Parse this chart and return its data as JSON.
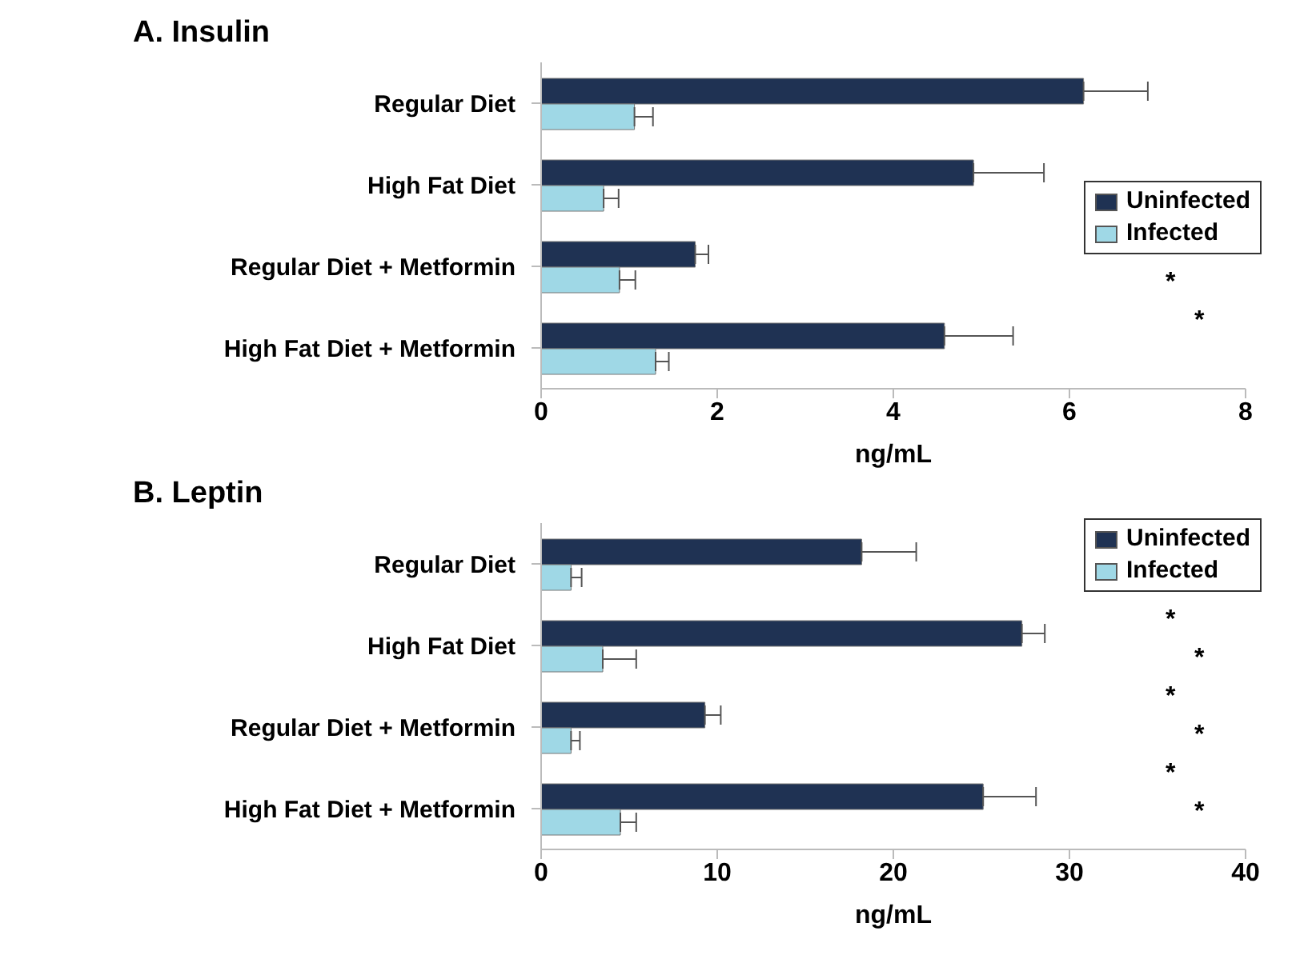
{
  "chart_data": [
    {
      "type": "bar",
      "orientation": "horizontal",
      "title": "A. Insulin",
      "xlabel": "ng/mL",
      "categories": [
        "Regular Diet",
        "High Fat Diet",
        "Regular Diet + Metformin",
        "High Fat Diet + Metformin"
      ],
      "xlim": [
        0,
        8
      ],
      "xticks": [
        0,
        2,
        4,
        6,
        8
      ],
      "legend": "right",
      "grid": false,
      "series": [
        {
          "name": "Uninfected",
          "color": "#1f3253",
          "values": [
            6.16,
            4.91,
            1.75,
            4.58
          ],
          "errors": [
            [
              6.16,
              6.89
            ],
            [
              4.91,
              5.71
            ],
            [
              1.75,
              1.9
            ],
            [
              4.58,
              5.36
            ]
          ]
        },
        {
          "name": "Infected",
          "color": "#9fd8e6",
          "values": [
            1.06,
            0.71,
            0.89,
            1.3
          ],
          "errors": [
            [
              1.06,
              1.27
            ],
            [
              0.71,
              0.88
            ],
            [
              0.89,
              1.07
            ],
            [
              1.3,
              1.45
            ]
          ]
        }
      ],
      "annotations": [
        "*",
        "*"
      ]
    },
    {
      "type": "bar",
      "orientation": "horizontal",
      "title": "B. Leptin",
      "xlabel": "ng/mL",
      "categories": [
        "Regular Diet",
        "High Fat Diet",
        "Regular Diet + Metformin",
        "High Fat Diet + Metformin"
      ],
      "xlim": [
        0,
        40
      ],
      "xticks": [
        0,
        10,
        20,
        30,
        40
      ],
      "legend": "top right",
      "grid": false,
      "series": [
        {
          "name": "Uninfected",
          "color": "#1f3253",
          "values": [
            18.2,
            27.3,
            9.3,
            25.1
          ],
          "errors": [
            [
              18.2,
              21.3
            ],
            [
              27.3,
              28.6
            ],
            [
              9.3,
              10.2
            ],
            [
              25.1,
              28.1
            ]
          ]
        },
        {
          "name": "Infected",
          "color": "#9fd8e6",
          "values": [
            1.7,
            3.5,
            1.7,
            4.5
          ],
          "errors": [
            [
              1.7,
              2.3
            ],
            [
              3.5,
              5.4
            ],
            [
              1.7,
              2.2
            ],
            [
              4.5,
              5.4
            ]
          ]
        }
      ],
      "annotations": [
        "*",
        "*",
        "*",
        "*",
        "*",
        "*"
      ]
    }
  ]
}
